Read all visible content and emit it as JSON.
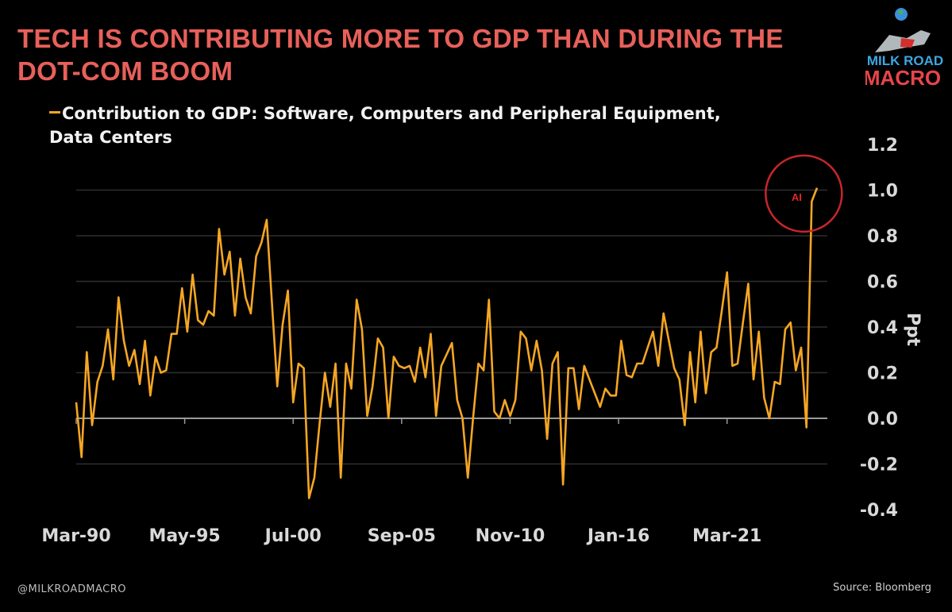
{
  "title": "TECH IS CONTRIBUTING MORE TO GDP THAN DURING THE DOT-COM BOOM",
  "footer": {
    "handle": "@MILKROADMACRO",
    "source": "Source: Bloomberg"
  },
  "logo": {
    "line1": "MILK ROAD",
    "line2": "MACRO"
  },
  "colors": {
    "title": "#e8605a",
    "line": "#f5a623",
    "annotation": "#c8262a",
    "grid": "#2e2e2e",
    "zero": "#9a9a9a"
  },
  "chart_data": {
    "type": "line",
    "title": "TECH IS CONTRIBUTING MORE TO GDP THAN DURING THE DOT-COM BOOM",
    "legend": [
      "Contribution to GDP: Software, Computers and Peripheral Equipment,",
      "Data Centers"
    ],
    "legend_placement": "top-left",
    "ylabel": "Ppt",
    "xlabel": "",
    "ylim": [
      -0.4,
      1.2
    ],
    "yticks": [
      1.2,
      1.0,
      0.8,
      0.6,
      0.4,
      0.2,
      0.0,
      -0.2,
      -0.4
    ],
    "ytick_labels": [
      "1.2",
      "1.0",
      "0.8",
      "0.6",
      "0.4",
      "0.2",
      "0.0",
      "-0.2",
      "-0.4"
    ],
    "y_axis_side": "right",
    "grid": true,
    "x_frequency": "quarterly",
    "xtick_index": [
      0,
      20.5,
      41,
      61.5,
      82,
      102.5,
      123
    ],
    "xtick_labels": [
      "Mar-90",
      "May-95",
      "Jul-00",
      "Sep-05",
      "Nov-10",
      "Jan-16",
      "Mar-21"
    ],
    "annotation": {
      "label": "AI",
      "shape": "circle",
      "around_index": 139,
      "around_value": 0.95
    },
    "series": [
      {
        "name": "Contribution to GDP: Software, Computers and Peripheral Equipment, Data Centers",
        "values": [
          0.07,
          -0.17,
          0.29,
          -0.03,
          0.16,
          0.23,
          0.39,
          0.17,
          0.53,
          0.34,
          0.23,
          0.3,
          0.15,
          0.34,
          0.1,
          0.27,
          0.2,
          0.21,
          0.37,
          0.37,
          0.57,
          0.38,
          0.63,
          0.43,
          0.41,
          0.47,
          0.45,
          0.83,
          0.63,
          0.73,
          0.45,
          0.7,
          0.53,
          0.46,
          0.71,
          0.77,
          0.87,
          0.5,
          0.14,
          0.41,
          0.56,
          0.07,
          0.24,
          0.22,
          -0.35,
          -0.26,
          -0.02,
          0.2,
          0.05,
          0.24,
          -0.26,
          0.24,
          0.13,
          0.52,
          0.39,
          0.01,
          0.14,
          0.35,
          0.31,
          0.0,
          0.27,
          0.23,
          0.22,
          0.23,
          0.16,
          0.31,
          0.18,
          0.37,
          0.01,
          0.23,
          0.28,
          0.33,
          0.08,
          0.0,
          -0.26,
          0.0,
          0.24,
          0.21,
          0.52,
          0.03,
          0.0,
          0.08,
          0.01,
          0.08,
          0.38,
          0.35,
          0.21,
          0.34,
          0.21,
          -0.09,
          0.24,
          0.29,
          -0.29,
          0.22,
          0.22,
          0.04,
          0.23,
          0.17,
          0.11,
          0.05,
          0.13,
          0.1,
          0.1,
          0.34,
          0.19,
          0.18,
          0.24,
          0.24,
          0.31,
          0.38,
          0.23,
          0.46,
          0.34,
          0.22,
          0.17,
          -0.03,
          0.29,
          0.07,
          0.38,
          0.11,
          0.29,
          0.31,
          0.47,
          0.64,
          0.23,
          0.24,
          0.42,
          0.59,
          0.17,
          0.38,
          0.09,
          0.0,
          0.16,
          0.15,
          0.39,
          0.42,
          0.21,
          0.31,
          -0.04,
          0.95,
          1.01
        ]
      }
    ]
  }
}
